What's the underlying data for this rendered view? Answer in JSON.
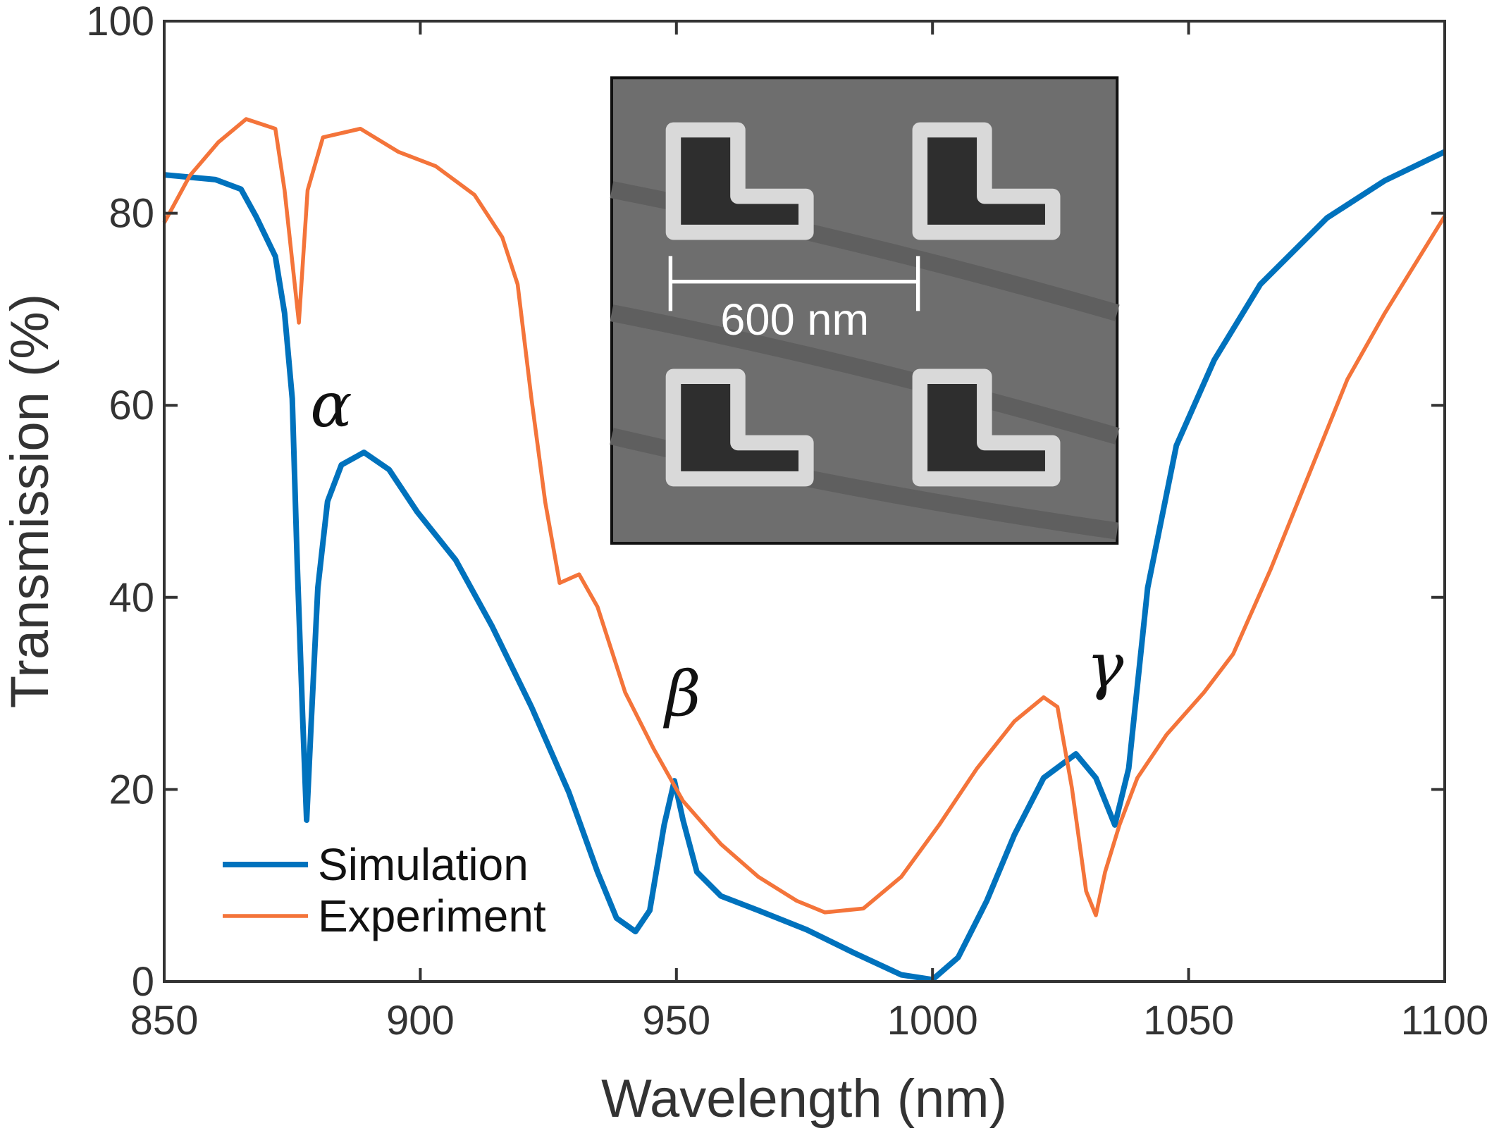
{
  "chart_data": {
    "type": "line",
    "xlabel": "Wavelength (nm)",
    "ylabel": "Transmission (%)",
    "xlim": [
      850,
      1100
    ],
    "ylim": [
      0,
      100
    ],
    "xticks": [
      850,
      900,
      950,
      1000,
      1050,
      1100
    ],
    "yticks": [
      0,
      20,
      40,
      60,
      80,
      100
    ],
    "legend": "lower left",
    "annotations": [
      "α",
      "β",
      "γ"
    ],
    "inset_label": "600 nm",
    "series": [
      {
        "name": "Simulation",
        "color": "#0072bd",
        "x": [
          850,
          860,
          865,
          868,
          871.7,
          873.5,
          875,
          876,
          877,
          877.8,
          878.7,
          880,
          881.9,
          884.6,
          889,
          893.9,
          899.4,
          906.9,
          914,
          921.7,
          929,
          934.6,
          938.3,
          942,
          944.8,
          947.6,
          949.6,
          951.3,
          954,
          958.7,
          966,
          975.4,
          984.6,
          993.9,
          1000,
          1005,
          1010.6,
          1016,
          1021.7,
          1028,
          1031.9,
          1035.6,
          1038.3,
          1042,
          1047.6,
          1055,
          1064,
          1077,
          1088.3,
          1100
        ],
        "values": [
          84.0,
          83.5,
          82.5,
          79.6,
          75.5,
          69.6,
          60.7,
          43,
          28,
          16.8,
          27,
          41,
          50,
          53.8,
          55.1,
          53.3,
          48.9,
          43.9,
          37,
          28.6,
          19.7,
          11.4,
          6.6,
          5.2,
          7.4,
          16.3,
          20.9,
          16.8,
          11.4,
          8.9,
          7.4,
          5.4,
          3,
          0.7,
          0.2,
          2.5,
          8.4,
          15.3,
          21.2,
          23.7,
          21.2,
          16.3,
          22.2,
          41,
          55.8,
          64.7,
          72.6,
          79.5,
          83.4,
          86.4
        ]
      },
      {
        "name": "Experiment",
        "color": "#f4743a",
        "x": [
          850,
          855,
          860.6,
          866,
          871.7,
          873.5,
          876.3,
          878,
          881,
          888.3,
          895.7,
          903,
          910.6,
          916,
          919,
          921.7,
          924.4,
          927.2,
          931,
          934.6,
          940,
          945.6,
          951.3,
          958.7,
          966,
          973.5,
          979,
          986.5,
          993.9,
          1001.3,
          1008.7,
          1016,
          1021.7,
          1024.4,
          1027.2,
          1030,
          1031.9,
          1033.7,
          1036.5,
          1040,
          1045.7,
          1053,
          1058.7,
          1066,
          1073.5,
          1081,
          1088.3,
          1100
        ],
        "values": [
          79,
          83.9,
          87.4,
          89.8,
          88.8,
          82.4,
          68.6,
          82.4,
          87.9,
          88.8,
          86.4,
          84.9,
          81.9,
          77.5,
          72.6,
          60.7,
          49.9,
          41.5,
          42.4,
          39,
          30.1,
          24.2,
          18.8,
          14.3,
          10.9,
          8.4,
          7.2,
          7.6,
          10.9,
          16.3,
          22.2,
          27.1,
          29.6,
          28.6,
          20.2,
          9.4,
          6.9,
          11.4,
          16.3,
          21.2,
          25.7,
          30.1,
          34.1,
          42.9,
          52.8,
          62.7,
          69.6,
          79.7
        ]
      }
    ]
  }
}
